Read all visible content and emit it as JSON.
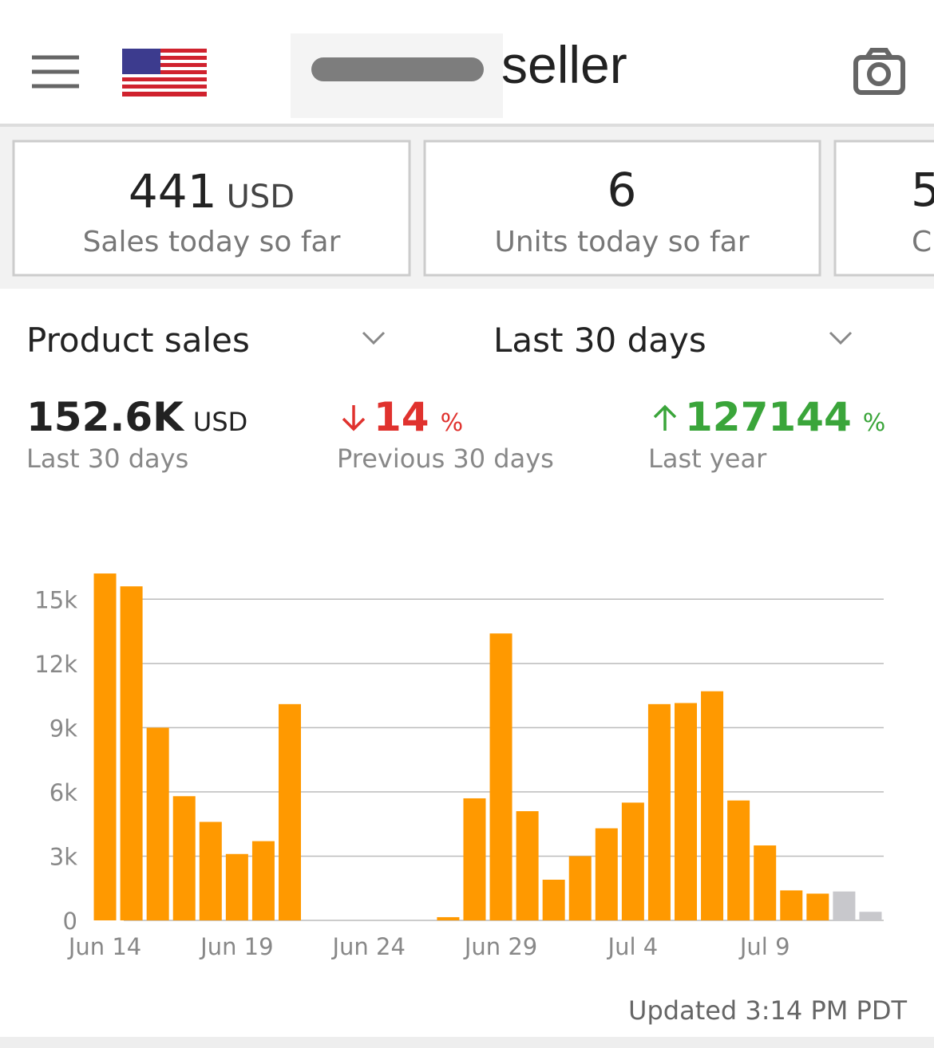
{
  "header": {
    "brand": "seller"
  },
  "cards": [
    {
      "value": 441,
      "unit": "USD",
      "label": "Sales today so far"
    },
    {
      "value": 6,
      "label": "Units today so far"
    },
    {
      "value": 5,
      "label": "C"
    }
  ],
  "selectors": {
    "metric": "Product sales",
    "period": "Last 30 days"
  },
  "summary": [
    {
      "value": "152.6K",
      "unit": "USD",
      "label": "Last 30 days"
    },
    {
      "value": 14,
      "unit": "%",
      "label": "Previous 30 days",
      "direction": "down",
      "color": "#e0322e"
    },
    {
      "value": 127144,
      "unit": "%",
      "label": "Last year",
      "direction": "up",
      "color": "#3aa53a"
    }
  ],
  "chart_data": {
    "type": "bar",
    "categories": [
      "Jun 14",
      null,
      null,
      null,
      null,
      "Jun 19",
      null,
      null,
      null,
      null,
      "Jun 24",
      null,
      null,
      null,
      null,
      "Jun 29",
      null,
      null,
      null,
      null,
      "Jul 4",
      null,
      null,
      null,
      null,
      "Jul 9",
      null,
      null,
      null,
      null
    ],
    "values": [
      16200,
      15600,
      9000,
      5800,
      4600,
      3100,
      3700,
      10100,
      0,
      0,
      0,
      0,
      0,
      150,
      5700,
      13400,
      5100,
      1900,
      3000,
      4300,
      5500,
      10100,
      10150,
      10700,
      5600,
      3500,
      1400,
      1250,
      1350,
      400
    ],
    "colors": [
      "#ff9900",
      "#ff9900",
      "#ff9900",
      "#ff9900",
      "#ff9900",
      "#ff9900",
      "#ff9900",
      "#ff9900",
      "#ff9900",
      "#ff9900",
      "#ff9900",
      "#ff9900",
      "#ff9900",
      "#ff9900",
      "#ff9900",
      "#ff9900",
      "#ff9900",
      "#ff9900",
      "#ff9900",
      "#ff9900",
      "#ff9900",
      "#ff9900",
      "#ff9900",
      "#ff9900",
      "#ff9900",
      "#ff9900",
      "#ff9900",
      "#ff9900",
      "#c8c8cc",
      "#c8c8cc"
    ],
    "ylim": [
      0,
      16500
    ],
    "yticks": [
      0,
      {
        "value": 3000,
        "label": "3k"
      },
      {
        "value": 6000,
        "label": "6k"
      },
      {
        "value": 9000,
        "label": "9k"
      },
      {
        "value": 12000,
        "label": "12k"
      },
      {
        "value": 15000,
        "label": "15k"
      }
    ],
    "grid": true
  },
  "footer": "Updated 3:14 PM PDT"
}
